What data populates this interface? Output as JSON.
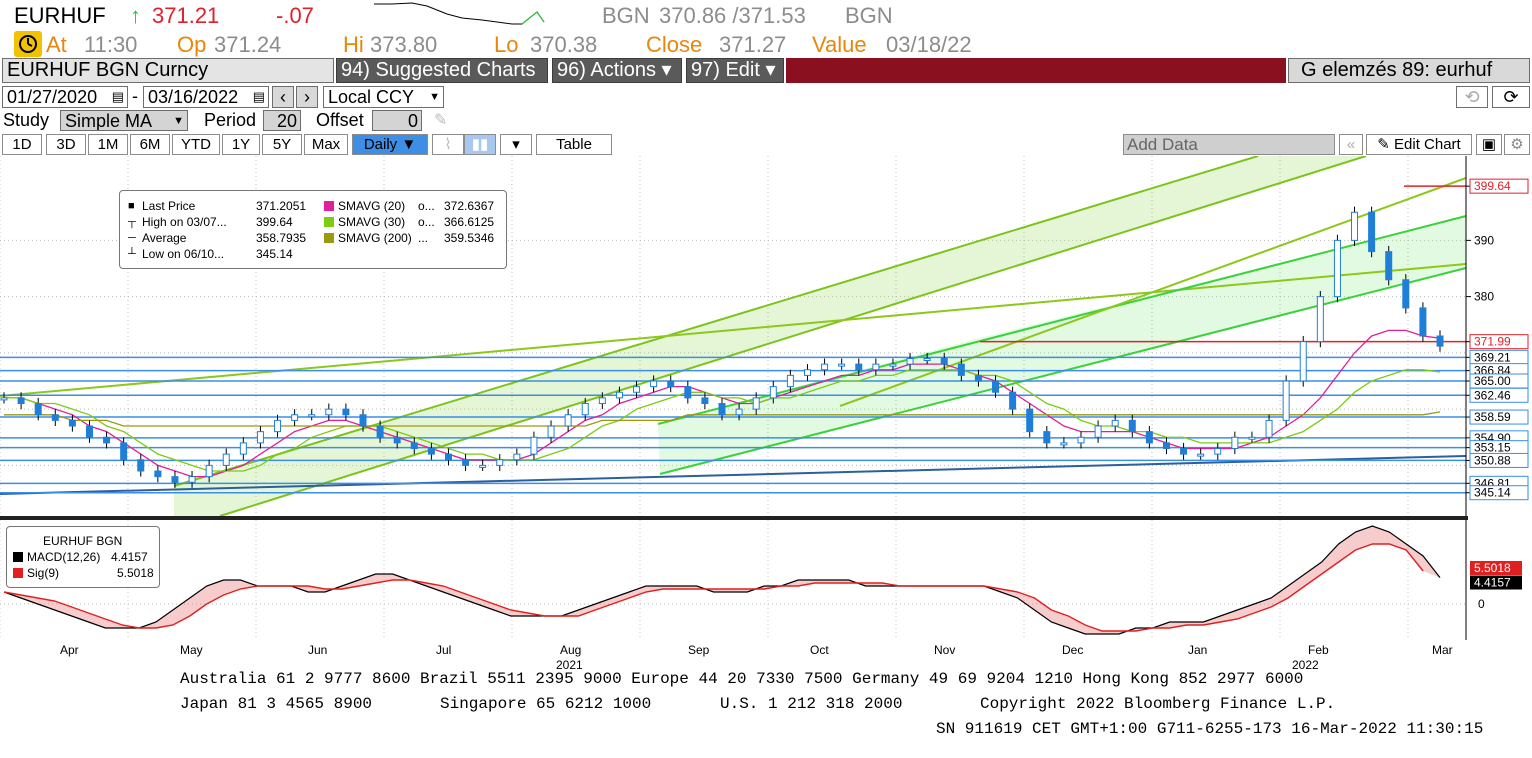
{
  "header": {
    "ticker": "EURHUF",
    "arrow": "↑",
    "last": "371.21",
    "change": "-.07",
    "source": "BGN",
    "bid_ask": "370.86 /371.53",
    "source2": "BGN",
    "at_label": "At",
    "at_value": "11:30",
    "op_label": "Op",
    "op_value": "371.24",
    "hi_label": "Hi",
    "hi_value": "373.80",
    "lo_label": "Lo",
    "lo_value": "370.38",
    "close_label": "Close",
    "close_value": "371.27",
    "value_label": "Value",
    "value_date": "03/18/22"
  },
  "toolbar": {
    "security": "EURHUF BGN Curncy",
    "suggested": "94) Suggested Charts",
    "actions": "96) Actions ▾",
    "edit": "97) Edit ▾",
    "function_title": "G elemzés 89: eurhuf",
    "date_from": "01/27/2020",
    "date_sep": "-",
    "date_to": "03/16/2022",
    "currency": "Local CCY",
    "study_label": "Study",
    "study_value": "Simple MA",
    "period_label": "Period",
    "period_value": "20",
    "offset_label": "Offset",
    "offset_value": "0"
  },
  "ranges": [
    "1D",
    "3D",
    "1M",
    "6M",
    "YTD",
    "1Y",
    "5Y",
    "Max"
  ],
  "frequency": "Daily ▼",
  "table_label": "Table",
  "add_data": "Add Data",
  "edit_chart": "Edit Chart",
  "legend": {
    "rows": [
      {
        "label": "Last Price",
        "value": "371.2051",
        "color": "#000000"
      },
      {
        "label": "High on 03/07...",
        "value": "399.64",
        "color": "#000000"
      },
      {
        "label": "Average",
        "value": "358.7935",
        "color": "#000000"
      },
      {
        "label": "Low on 06/10...",
        "value": "345.14",
        "color": "#000000"
      }
    ],
    "ma_rows": [
      {
        "label": "SMAVG (20)",
        "suffix": "o...",
        "value": "372.6367",
        "color": "#e0209a"
      },
      {
        "label": "SMAVG (30)",
        "suffix": "o...",
        "value": "366.6125",
        "color": "#7ccc10"
      },
      {
        "label": "SMAVG (200)",
        "suffix": "...",
        "value": "359.5346",
        "color": "#9a9a10"
      }
    ]
  },
  "macd_legend": {
    "title": "EURHUF BGN",
    "macd_label": "MACD(12,26)",
    "macd_value": "4.4157",
    "sig_label": "Sig(9)",
    "sig_value": "5.5018"
  },
  "y_axis_labels": [
    "399.64",
    "390",
    "380",
    "371.99",
    "369.21",
    "366.84",
    "365.00",
    "362.46",
    "358.59",
    "354.90",
    "353.15",
    "350.88",
    "346.81",
    "345.14"
  ],
  "macd_axis_labels": [
    "5.5018",
    "4.4157",
    "0"
  ],
  "month_labels": [
    "Apr",
    "May",
    "Jun",
    "Jul",
    "Aug",
    "Sep",
    "Oct",
    "Nov",
    "Dec",
    "Jan",
    "Feb",
    "Mar"
  ],
  "year_labels": [
    "2021",
    "2022"
  ],
  "footer": {
    "line1": "Australia 61 2 9777 8600 Brazil 5511 2395 9000 Europe 44 20 7330 7500 Germany 49 69 9204 1210 Hong Kong 852 2977 6000",
    "line2a": "Japan 81 3 4565 8900",
    "line2b": "Singapore 65 6212 1000",
    "line2c": "U.S. 1 212 318 2000",
    "line2d": "Copyright 2022 Bloomberg Finance L.P.",
    "line3": "SN 911619 CET  GMT+1:00 G711-6255-173 16-Mar-2022 11:30:15"
  },
  "chart_data": {
    "type": "line",
    "title": "EURHUF BGN Curncy",
    "ylim": [
      341,
      405
    ],
    "months": [
      "Apr",
      "May",
      "Jun",
      "Jul",
      "Aug",
      "Sep",
      "Oct",
      "Nov",
      "Dec",
      "Jan",
      "Feb",
      "Mar"
    ],
    "series": [
      {
        "name": "Last Price",
        "color": "#1f7fd8",
        "values": [
          362,
          361,
          359,
          358,
          357,
          355,
          354,
          351,
          349,
          348,
          347,
          348,
          350,
          352,
          354,
          356,
          358,
          359,
          359,
          360,
          359,
          357,
          355,
          354,
          353,
          352,
          351,
          350,
          350,
          351,
          352,
          355,
          357,
          359,
          361,
          362,
          363,
          364,
          365,
          364,
          362,
          361,
          359,
          360,
          362,
          364,
          366,
          367,
          368,
          368,
          367,
          368,
          368,
          369,
          369,
          368,
          366,
          365,
          363,
          360,
          356,
          354,
          354,
          355,
          357,
          358,
          356,
          354,
          353,
          352,
          352,
          353,
          355,
          355,
          358,
          365,
          372,
          380,
          390,
          395,
          388,
          383,
          378,
          373,
          371.2
        ]
      },
      {
        "name": "SMAVG (20)",
        "color": "#e0209a",
        "values": [
          362,
          362,
          361,
          360,
          359,
          357,
          356,
          354,
          352,
          350,
          349,
          348,
          348,
          349,
          350,
          352,
          354,
          356,
          357,
          358,
          358,
          357,
          356,
          355,
          354,
          353,
          352,
          351,
          351,
          351,
          351,
          352,
          354,
          356,
          358,
          359,
          361,
          362,
          363,
          364,
          364,
          363,
          362,
          361,
          361,
          362,
          363,
          364,
          365,
          366,
          366,
          367,
          367,
          368,
          368,
          368,
          367,
          366,
          365,
          363,
          361,
          359,
          357,
          356,
          356,
          356,
          356,
          355,
          354,
          353,
          353,
          353,
          353,
          354,
          355,
          357,
          359,
          362,
          366,
          370,
          373,
          374,
          374,
          373,
          372.6
        ]
      },
      {
        "name": "SMAVG (30)",
        "color": "#7ccc10",
        "values": [
          362,
          362,
          361,
          361,
          360,
          359,
          357,
          356,
          354,
          352,
          351,
          350,
          349,
          349,
          349,
          350,
          352,
          353,
          355,
          356,
          357,
          357,
          357,
          356,
          355,
          354,
          353,
          352,
          352,
          351,
          351,
          351,
          352,
          353,
          355,
          357,
          358,
          360,
          361,
          362,
          363,
          363,
          362,
          362,
          361,
          362,
          362,
          363,
          364,
          365,
          365,
          366,
          366,
          367,
          367,
          367,
          367,
          366,
          366,
          365,
          363,
          361,
          360,
          358,
          357,
          357,
          356,
          356,
          355,
          355,
          354,
          354,
          354,
          354,
          354,
          355,
          356,
          358,
          360,
          363,
          365,
          366,
          367,
          367,
          366.6
        ]
      },
      {
        "name": "SMAVG (200)",
        "color": "#9a9a10",
        "values": [
          359,
          359,
          359,
          359,
          358,
          358,
          358,
          357,
          357,
          357,
          357,
          357,
          357,
          357,
          357,
          357,
          357,
          357,
          357,
          357,
          357,
          357,
          357,
          357,
          357,
          357,
          357,
          357,
          357,
          357,
          357,
          357,
          357,
          357,
          357,
          358,
          358,
          358,
          358,
          358,
          359,
          359,
          359,
          359,
          359,
          359,
          359,
          359,
          359,
          359,
          359,
          359,
          359,
          359,
          359,
          359,
          359,
          359,
          359,
          359,
          359,
          359,
          359,
          359,
          359,
          359,
          359,
          359,
          359,
          359,
          359,
          359,
          359,
          359,
          359,
          359,
          359,
          359,
          359,
          359,
          359,
          359,
          359,
          359,
          359.5
        ]
      }
    ],
    "horizontal_levels": [
      371.99,
      369.21,
      366.84,
      365.0,
      362.46,
      358.59,
      354.9,
      353.15,
      350.88,
      346.81,
      345.14
    ],
    "macd": {
      "ylim": [
        -6,
        14
      ],
      "macd": [
        2,
        1,
        0,
        -1,
        -2,
        -3,
        -4,
        -4,
        -4,
        -3,
        -1,
        1,
        3,
        4,
        4,
        3,
        3,
        3,
        2,
        2,
        3,
        4,
        5,
        5,
        4,
        3,
        2,
        1,
        0,
        -1,
        -2,
        -2,
        -2,
        -2,
        -1,
        0,
        1,
        2,
        3,
        3,
        3,
        3,
        2,
        2,
        2,
        3,
        3,
        4,
        4,
        4,
        4,
        3,
        3,
        3,
        3,
        3,
        3,
        3,
        3,
        2,
        1,
        -1,
        -3,
        -4,
        -5,
        -5,
        -5,
        -4,
        -4,
        -3,
        -3,
        -3,
        -2,
        -1,
        0,
        1,
        3,
        5,
        7,
        10,
        12,
        13,
        12,
        10,
        8,
        4.4
      ],
      "signal": [
        2,
        1.5,
        1,
        0.5,
        -0.5,
        -1.5,
        -2.5,
        -3.5,
        -4,
        -4,
        -3.5,
        -2,
        0,
        1.5,
        2.5,
        3,
        3,
        3,
        3,
        2.5,
        2.5,
        3,
        3.5,
        4,
        4,
        3.5,
        3,
        2,
        1,
        0,
        -1,
        -1.5,
        -2,
        -2,
        -2,
        -1,
        0,
        1,
        2,
        2.5,
        2.5,
        2.5,
        2.5,
        2.5,
        2.5,
        2.5,
        3,
        3,
        3.5,
        3.5,
        3.5,
        3.5,
        3.5,
        3,
        3,
        3,
        3,
        3,
        3,
        2.5,
        2,
        1,
        -1,
        -2,
        -3.5,
        -4.5,
        -4.5,
        -4.5,
        -4,
        -4,
        -3.5,
        -3.5,
        -3,
        -2.5,
        -1.5,
        -0.5,
        1,
        3,
        5,
        7,
        9,
        10,
        10,
        9,
        5.5
      ]
    }
  }
}
